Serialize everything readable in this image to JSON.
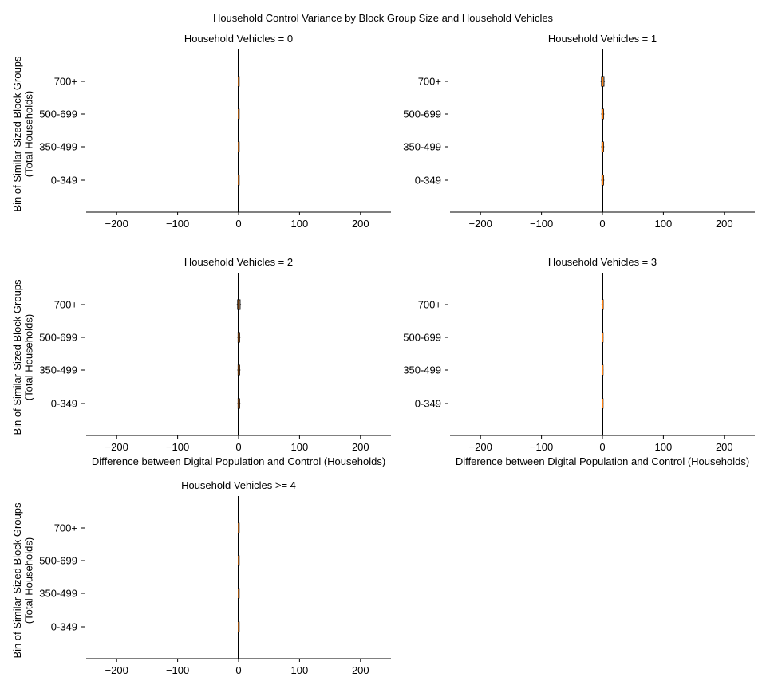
{
  "figure": {
    "title": "Household Control Variance by Block Group Size and Household Vehicles"
  },
  "chart_data": {
    "type": "boxplot",
    "title": "Household Control Variance by Block Group Size and Household Vehicles",
    "xlabel": "Difference between Digital Population and Control (Households)",
    "ylabel": "Bin of Similar-Sized Block Groups\n(Total Households)",
    "xlim": [
      -250,
      250
    ],
    "xticks": [
      -200,
      -100,
      0,
      100,
      200
    ],
    "xtick_labels": [
      "−200",
      "−100",
      "0",
      "100",
      "200"
    ],
    "categories": [
      "0-349",
      "350-499",
      "500-699",
      "700+"
    ],
    "colors": {
      "median": "#ff7f0e",
      "box": "#000000",
      "zero_line": "#000000",
      "axis": "#000000"
    },
    "grid": false,
    "panels": [
      {
        "title": "Household Vehicles = 0",
        "show_ylabel": true,
        "show_xlabel": false,
        "boxes": [
          {
            "category": "0-349",
            "q1": -0.3,
            "median": 0.2,
            "q3": 0.6,
            "whisker_low": -1,
            "whisker_high": 1
          },
          {
            "category": "350-499",
            "q1": -0.3,
            "median": 0.2,
            "q3": 0.6,
            "whisker_low": -1,
            "whisker_high": 1
          },
          {
            "category": "500-699",
            "q1": -0.3,
            "median": 0.2,
            "q3": 0.6,
            "whisker_low": -1,
            "whisker_high": 1
          },
          {
            "category": "700+",
            "q1": -0.3,
            "median": 0.2,
            "q3": 0.6,
            "whisker_low": -1,
            "whisker_high": 1
          }
        ]
      },
      {
        "title": "Household Vehicles = 1",
        "show_ylabel": false,
        "show_xlabel": false,
        "boxes": [
          {
            "category": "0-349",
            "q1": -0.8,
            "median": 0.5,
            "q3": 1.8,
            "whisker_low": -2,
            "whisker_high": 3
          },
          {
            "category": "350-499",
            "q1": -0.8,
            "median": 0.5,
            "q3": 1.8,
            "whisker_low": -2,
            "whisker_high": 3
          },
          {
            "category": "500-699",
            "q1": -0.8,
            "median": 0.5,
            "q3": 1.8,
            "whisker_low": -2,
            "whisker_high": 3
          },
          {
            "category": "700+",
            "q1": -1.5,
            "median": 0.5,
            "q3": 2.5,
            "whisker_low": -3,
            "whisker_high": 4
          }
        ]
      },
      {
        "title": "Household Vehicles = 2",
        "show_ylabel": true,
        "show_xlabel": true,
        "boxes": [
          {
            "category": "0-349",
            "q1": -0.8,
            "median": 0.5,
            "q3": 1.8,
            "whisker_low": -2,
            "whisker_high": 3
          },
          {
            "category": "350-499",
            "q1": -0.8,
            "median": 0.5,
            "q3": 1.8,
            "whisker_low": -2,
            "whisker_high": 3
          },
          {
            "category": "500-699",
            "q1": -0.8,
            "median": 0.5,
            "q3": 1.8,
            "whisker_low": -2,
            "whisker_high": 3
          },
          {
            "category": "700+",
            "q1": -1.5,
            "median": 0.5,
            "q3": 2.5,
            "whisker_low": -3,
            "whisker_high": 4
          }
        ]
      },
      {
        "title": "Household Vehicles = 3",
        "show_ylabel": false,
        "show_xlabel": true,
        "boxes": [
          {
            "category": "0-349",
            "q1": -0.3,
            "median": 0.3,
            "q3": 0.8,
            "whisker_low": -1,
            "whisker_high": 1.5
          },
          {
            "category": "350-499",
            "q1": -0.3,
            "median": 0.3,
            "q3": 0.8,
            "whisker_low": -1,
            "whisker_high": 1.5
          },
          {
            "category": "500-699",
            "q1": -0.3,
            "median": 0.3,
            "q3": 0.8,
            "whisker_low": -1,
            "whisker_high": 1.5
          },
          {
            "category": "700+",
            "q1": -0.5,
            "median": 0.5,
            "q3": 1.3,
            "whisker_low": -1.5,
            "whisker_high": 2
          }
        ]
      },
      {
        "title": "Household Vehicles >= 4",
        "show_ylabel": true,
        "show_xlabel": false,
        "boxes": [
          {
            "category": "0-349",
            "q1": -0.3,
            "median": 0.2,
            "q3": 0.6,
            "whisker_low": -1,
            "whisker_high": 1
          },
          {
            "category": "350-499",
            "q1": -0.3,
            "median": 0.2,
            "q3": 0.6,
            "whisker_low": -1,
            "whisker_high": 1
          },
          {
            "category": "500-699",
            "q1": -0.3,
            "median": 0.2,
            "q3": 0.6,
            "whisker_low": -1,
            "whisker_high": 1
          },
          {
            "category": "700+",
            "q1": -0.3,
            "median": 0.2,
            "q3": 0.6,
            "whisker_low": -1,
            "whisker_high": 1
          }
        ]
      }
    ]
  }
}
